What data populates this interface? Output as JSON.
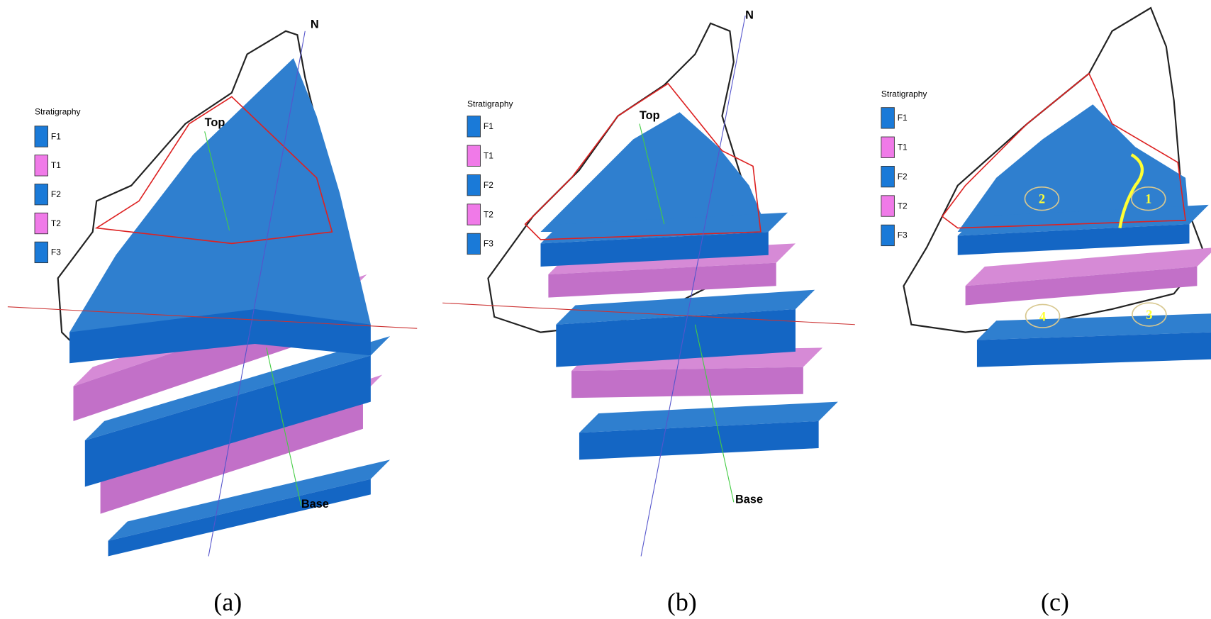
{
  "panels": [
    {
      "caption": "(a)",
      "legend": {
        "title": "Stratigraphy",
        "items": [
          {
            "label": "F1",
            "color": "#1a7ad8"
          },
          {
            "label": "T1",
            "color": "#f07ae8"
          },
          {
            "label": "F2",
            "color": "#1a7ad8"
          },
          {
            "label": "T2",
            "color": "#f07ae8"
          },
          {
            "label": "F3",
            "color": "#1a7ad8"
          }
        ]
      },
      "north": "N",
      "top": "Top",
      "base": "Base"
    },
    {
      "caption": "(b)",
      "legend": {
        "title": "Stratigraphy",
        "items": [
          {
            "label": "F1",
            "color": "#1a7ad8"
          },
          {
            "label": "T1",
            "color": "#f07ae8"
          },
          {
            "label": "F2",
            "color": "#1a7ad8"
          },
          {
            "label": "T2",
            "color": "#f07ae8"
          },
          {
            "label": "F3",
            "color": "#1a7ad8"
          }
        ]
      },
      "north": "N",
      "top": "Top",
      "base": "Base"
    },
    {
      "caption": "(c)",
      "legend": {
        "title": "Stratigraphy",
        "items": [
          {
            "label": "F1",
            "color": "#1a7ad8"
          },
          {
            "label": "T1",
            "color": "#f07ae8"
          },
          {
            "label": "F2",
            "color": "#1a7ad8"
          },
          {
            "label": "T2",
            "color": "#f07ae8"
          },
          {
            "label": "F3",
            "color": "#1a7ad8"
          }
        ]
      },
      "zones": [
        "1",
        "2",
        "3",
        "4"
      ]
    }
  ]
}
